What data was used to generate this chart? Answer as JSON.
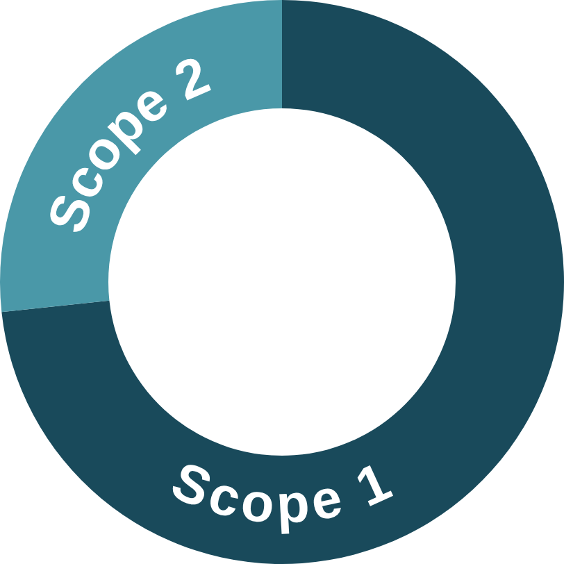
{
  "chart_data": {
    "type": "donut",
    "categories": [
      "Scope 1",
      "Scope 2"
    ],
    "values": [
      73.3,
      26.7
    ],
    "colors": [
      "#194a5b",
      "#4a98a8"
    ]
  }
}
